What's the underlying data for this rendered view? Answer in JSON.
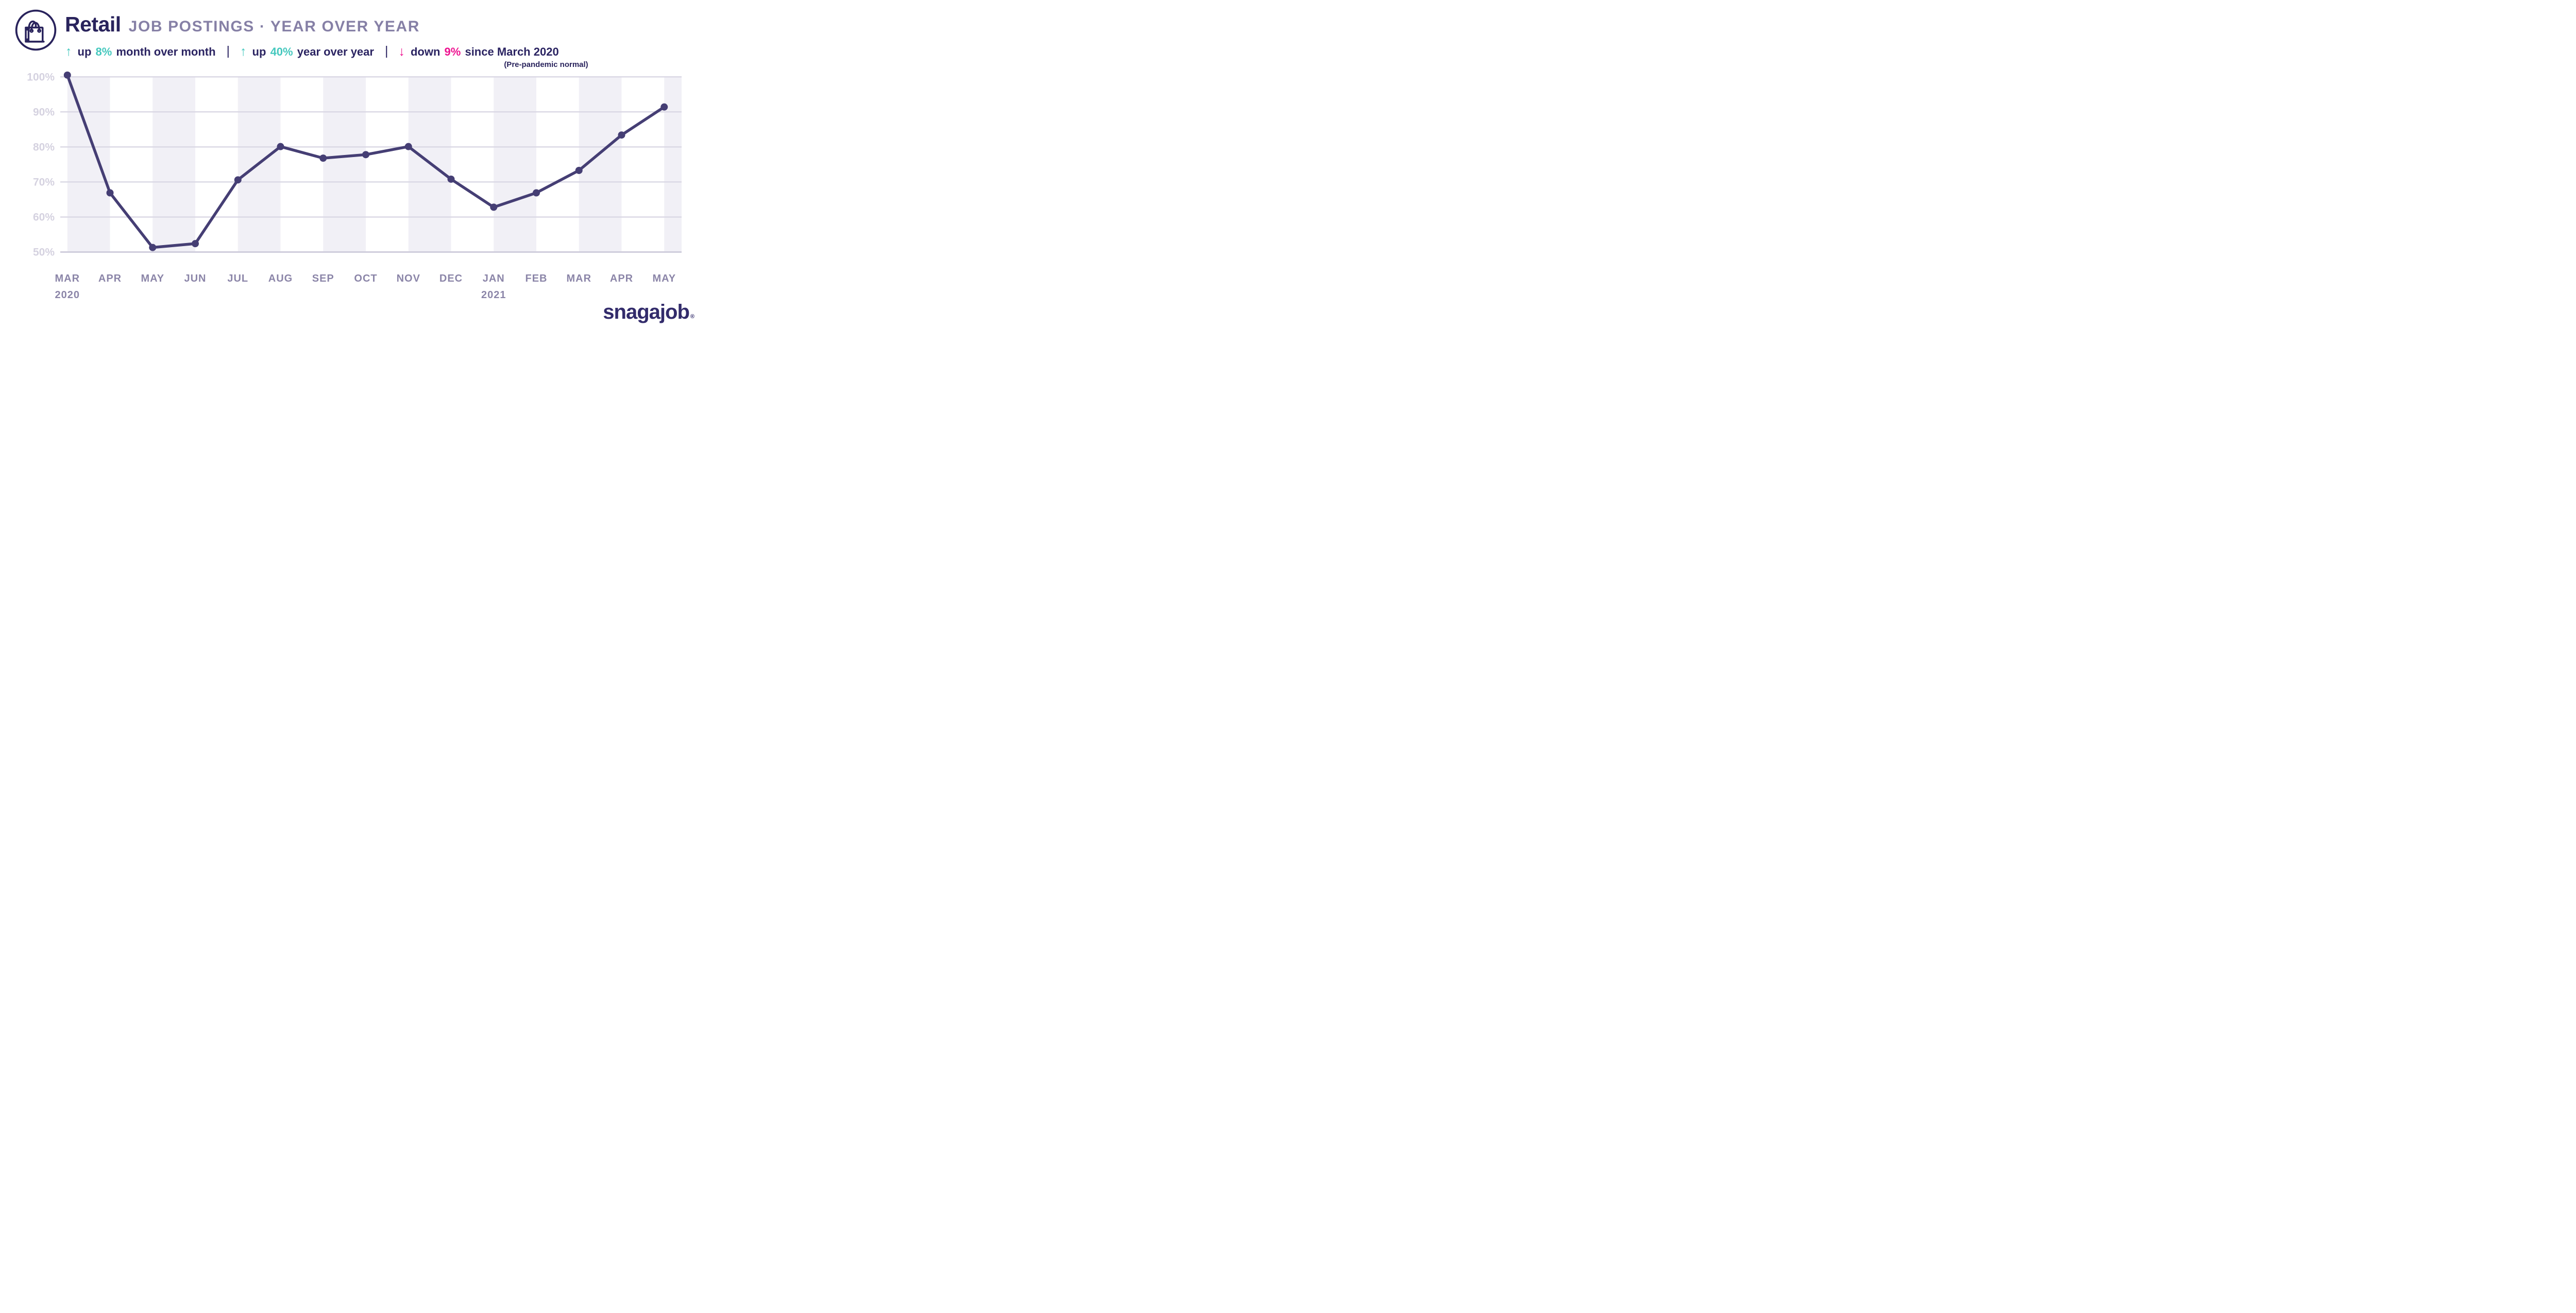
{
  "header": {
    "icon": "shopping-bag",
    "title_main": "Retail",
    "title_rest": "JOB POSTINGS · YEAR OVER YEAR",
    "separator": "|",
    "stats": [
      {
        "arrow": "↑",
        "word": "up",
        "pct": "8%",
        "rest": "month over month",
        "accent": "#45C8BE"
      },
      {
        "arrow": "↑",
        "word": "up",
        "pct": "40%",
        "rest": "year over year",
        "accent": "#45C8BE"
      },
      {
        "arrow": "↓",
        "word": "down",
        "pct": "9%",
        "rest": "since March 2020",
        "accent": "#EE1390"
      }
    ],
    "note": "(Pre-pandemic normal)"
  },
  "chart_data": {
    "type": "line",
    "title": "Retail job postings, year over year",
    "categories": [
      "MAR",
      "APR",
      "MAY",
      "JUN",
      "JUL",
      "AUG",
      "SEP",
      "OCT",
      "NOV",
      "DEC",
      "JAN",
      "FEB",
      "MAR",
      "APR",
      "MAY"
    ],
    "year_marks": [
      {
        "index": 0,
        "label": "2020"
      },
      {
        "index": 10,
        "label": "2021"
      }
    ],
    "values": [
      100.5,
      66.9,
      51.3,
      52.4,
      70.6,
      80.1,
      76.8,
      77.8,
      80.1,
      70.8,
      62.8,
      66.9,
      73.3,
      83.4,
      91.4
    ],
    "unit": "%",
    "y_ticks": [
      {
        "value": 100,
        "label": "100%"
      },
      {
        "value": 90,
        "label": "90%"
      },
      {
        "value": 80,
        "label": "80%"
      },
      {
        "value": 70,
        "label": "70%"
      },
      {
        "value": 60,
        "label": "60%"
      },
      {
        "value": 50,
        "label": "50%"
      }
    ],
    "ylim": [
      50,
      102.5
    ],
    "grid": "horizontal",
    "legend": "none",
    "alternating_bands": "between even and odd month positions",
    "colors": {
      "line": "#453E74",
      "dot": "#453E74",
      "band": "#F1F0F6",
      "gridline": "#DBD9E5",
      "baseline": "#CFCDDC",
      "tick_label": "#D5D2E0",
      "month_label": "#8B85A8",
      "year_label": "#8B85A8"
    }
  },
  "footer": {
    "logo": "snagajob",
    "registered": "®"
  }
}
